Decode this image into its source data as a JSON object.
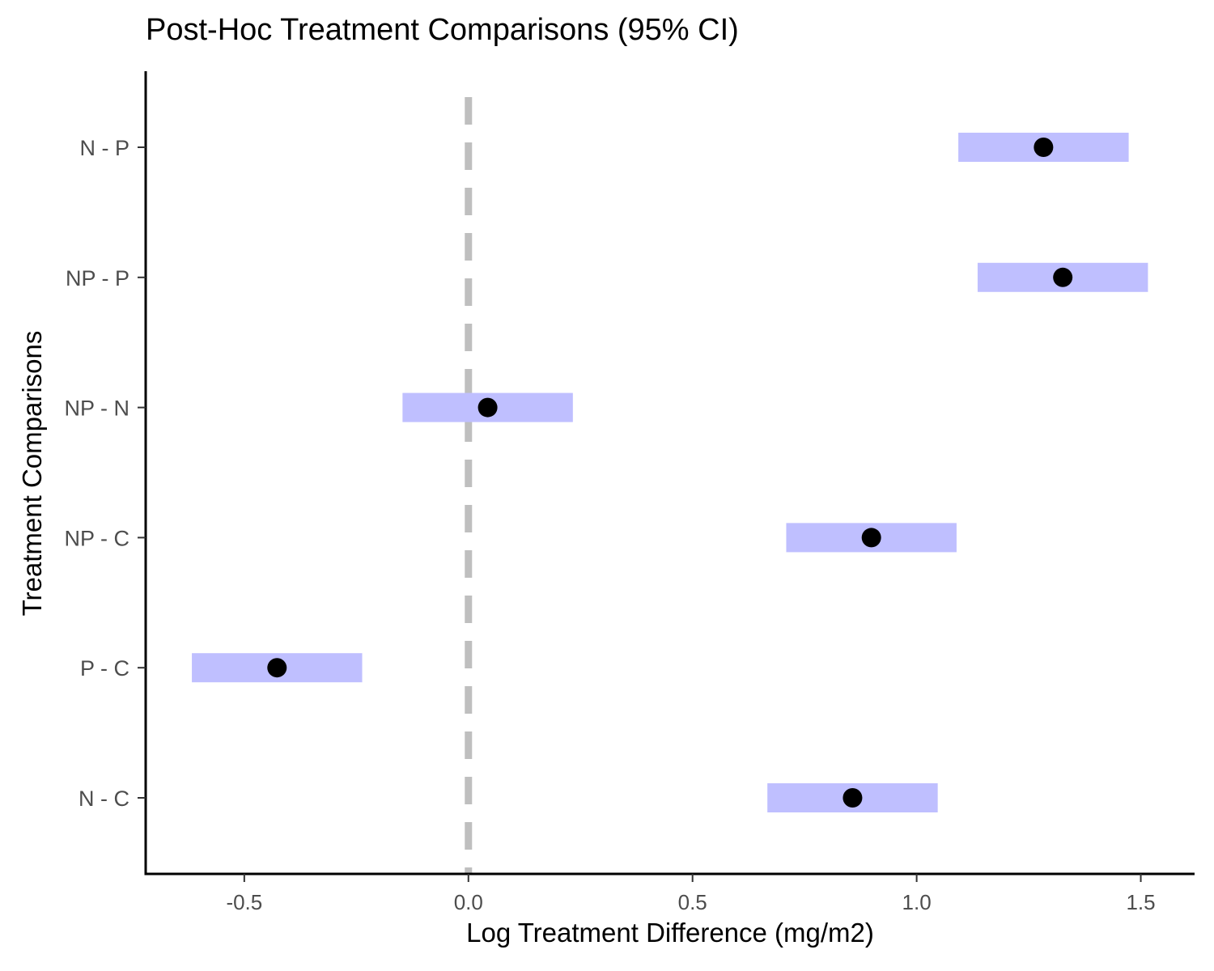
{
  "chart_data": {
    "type": "scatter",
    "title": "Post-Hoc Treatment Comparisons (95% CI)",
    "xlabel": "Log Treatment Difference (mg/m2)",
    "ylabel": "Treatment Comparisons",
    "xlim": [
      -0.72,
      1.62
    ],
    "xticks": [
      -0.5,
      0.0,
      0.5,
      1.0,
      1.5
    ],
    "xtick_labels": [
      "-0.5",
      "0.0",
      "0.5",
      "1.0",
      "1.5"
    ],
    "reference_line": {
      "x": 0.0,
      "style": "dashed",
      "color": "#bfbfbf"
    },
    "categories": [
      "N - C",
      "P - C",
      "NP - C",
      "NP - N",
      "NP - P",
      "N - P"
    ],
    "estimates": [
      0.857,
      -0.427,
      0.899,
      0.043,
      1.326,
      1.283
    ],
    "ci_lower": [
      0.667,
      -0.617,
      0.709,
      -0.147,
      1.136,
      1.093
    ],
    "ci_upper": [
      1.047,
      -0.237,
      1.089,
      0.233,
      1.516,
      1.473
    ],
    "colors": {
      "interval": "#bfbfff",
      "point": "#000000",
      "axis": "#000000",
      "tick_label": "#4d4d4d"
    },
    "grid": false,
    "legend": "none"
  }
}
